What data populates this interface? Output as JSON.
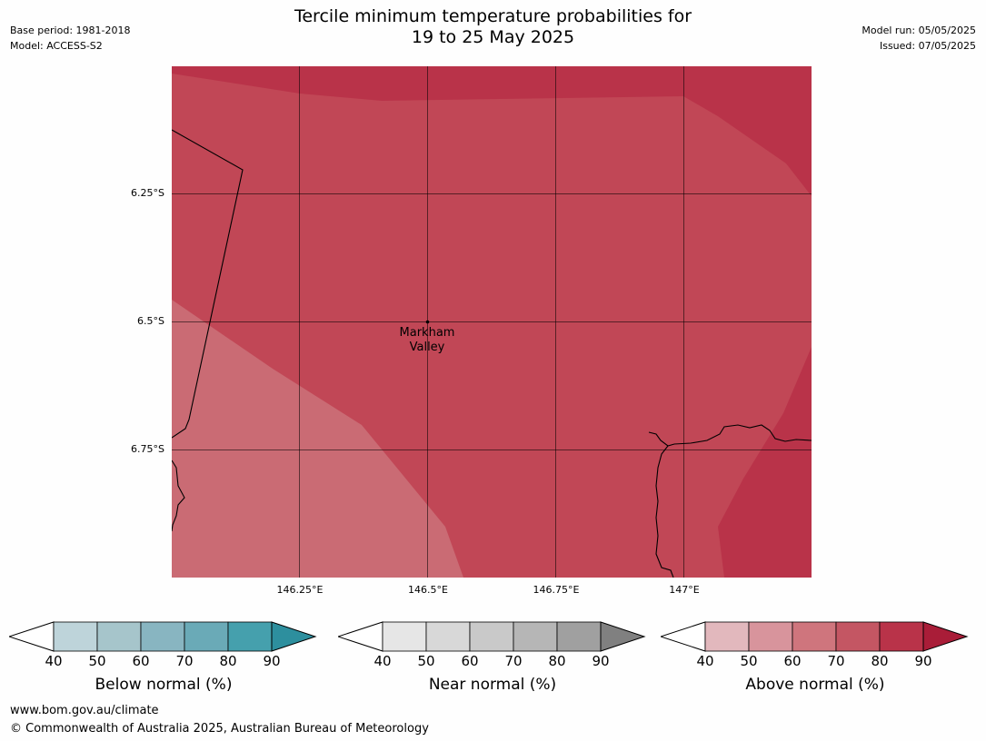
{
  "header": {
    "base_period": "Base period: 1981-2018",
    "model": "Model: ACCESS-S2",
    "model_run": "Model run: 05/05/2025",
    "issued": "Issued: 07/05/2025",
    "title_line1": "Tercile minimum temperature probabilities for",
    "title_line2": "19 to 25 May 2025"
  },
  "map": {
    "lat_labels": [
      "6.25°S",
      "6.5°S",
      "6.75°S"
    ],
    "lon_labels": [
      "146.25°E",
      "146.5°E",
      "146.75°E",
      "147°E"
    ],
    "place": {
      "name_line1": "Markham",
      "name_line2": "Valley"
    },
    "colors": {
      "above_80_90": "#b93349",
      "above_70_80": "#c14756",
      "above_60_70": "#ca6b74"
    }
  },
  "legends": [
    {
      "caption": "Below normal (%)",
      "ticks": [
        "40",
        "50",
        "60",
        "70",
        "80",
        "90"
      ],
      "colors": [
        "#bed4da",
        "#a6c5cb",
        "#88b5c1",
        "#6aaab7",
        "#45a0ad",
        "#2d8f9e"
      ]
    },
    {
      "caption": "Near normal (%)",
      "ticks": [
        "40",
        "50",
        "60",
        "70",
        "80",
        "90"
      ],
      "colors": [
        "#e6e6e6",
        "#d8d8d8",
        "#c9c9c9",
        "#b6b6b6",
        "#a0a0a0",
        "#808080"
      ]
    },
    {
      "caption": "Above normal (%)",
      "ticks": [
        "40",
        "50",
        "60",
        "70",
        "80",
        "90"
      ],
      "colors": [
        "#e2b8bd",
        "#d8949c",
        "#cf757d",
        "#c45663",
        "#b93349",
        "#a91d38"
      ]
    }
  ],
  "footer": {
    "website": "www.bom.gov.au/climate",
    "copyright": "© Commonwealth of Australia 2025, Australian Bureau of Meteorology"
  }
}
